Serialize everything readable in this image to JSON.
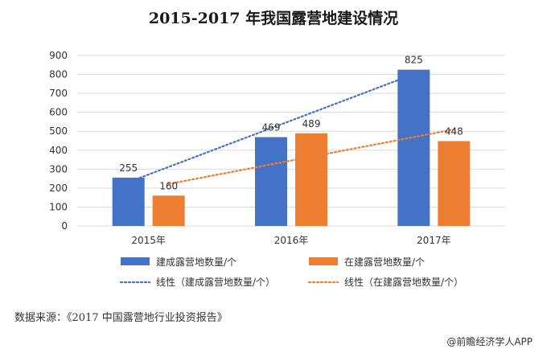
{
  "chart_data": {
    "type": "bar",
    "title": "2015-2017 年我国露营地建设情况",
    "categories": [
      "2015年",
      "2016年",
      "2017年"
    ],
    "series": [
      {
        "name": "建成露营地数量/个",
        "values": [
          255,
          469,
          825
        ],
        "color": "#4472C4"
      },
      {
        "name": "在建露营地数量/个",
        "values": [
          160,
          489,
          448
        ],
        "color": "#ED7D31"
      }
    ],
    "trendlines": [
      {
        "name": "线性（建成露营地数量/个）",
        "color": "#4472C4",
        "style": "dotted"
      },
      {
        "name": "线性（在建露营地数量/个）",
        "color": "#ED7D31",
        "style": "dotted"
      }
    ],
    "y_ticks": [
      "0",
      "100",
      "200",
      "300",
      "400",
      "500",
      "600",
      "700",
      "800",
      "900"
    ],
    "ylim": [
      0,
      900
    ],
    "grid": true,
    "legend_position": "bottom"
  },
  "footer": {
    "source": "数据来源：《2017 中国露营地行业投资报告》",
    "watermark": "@前瞻经济学人APP"
  }
}
